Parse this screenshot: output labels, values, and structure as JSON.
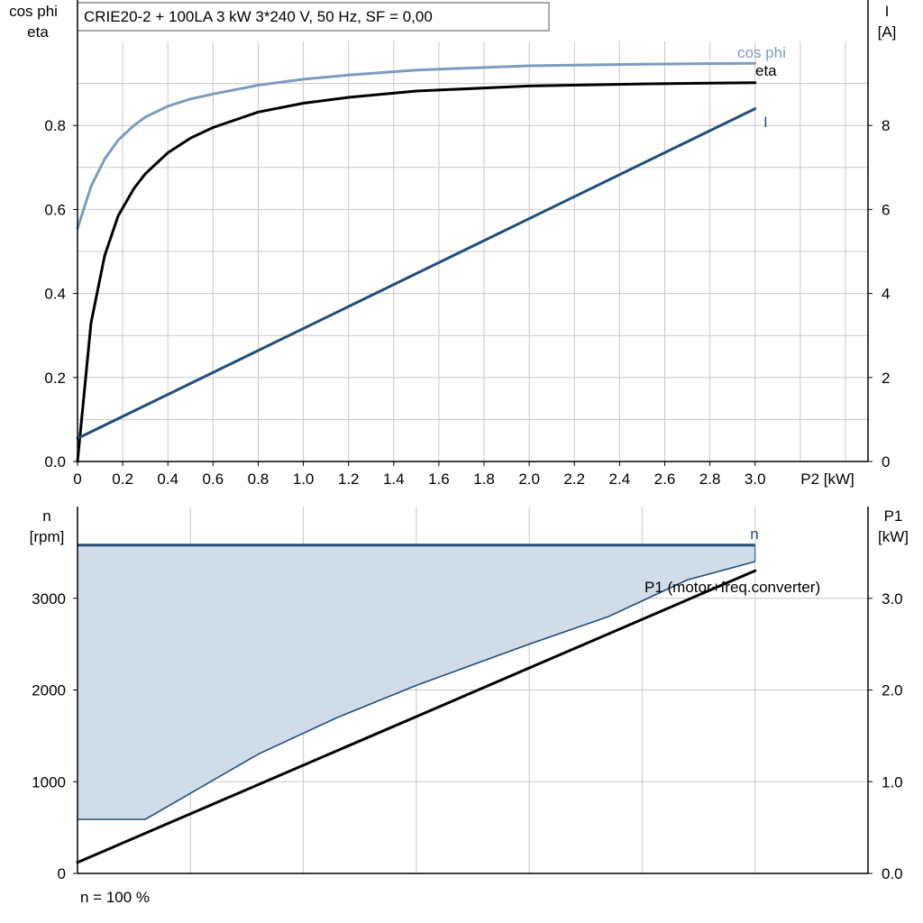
{
  "chart_data": [
    {
      "type": "line",
      "title": "CRIE20-2 + 100LA   3 kW   3*240 V, 50 Hz, SF = 0,00",
      "xlabel": "P2 [kW]",
      "ylabel_left_1": "cos phi",
      "ylabel_left_2": "eta",
      "ylabel_right_1": "I",
      "ylabel_right_2": "[A]",
      "xlim": [
        0,
        3.5
      ],
      "ylim_left": [
        0,
        1.0
      ],
      "ylim_right": [
        0,
        10
      ],
      "grid": true,
      "x_ticks": [
        "0",
        "0.2",
        "0.4",
        "0.6",
        "0.8",
        "1.0",
        "1.2",
        "1.4",
        "1.6",
        "1.8",
        "2.0",
        "2.2",
        "2.4",
        "2.6",
        "2.8",
        "3.0"
      ],
      "y_ticks_left": [
        "0.0",
        "0.2",
        "0.4",
        "0.6",
        "0.8"
      ],
      "y_ticks_right": [
        "0",
        "2",
        "4",
        "6",
        "8"
      ],
      "series": [
        {
          "name": "cos phi",
          "axis": "left",
          "color": "#7a9cbf",
          "x": [
            0,
            0.06,
            0.12,
            0.18,
            0.25,
            0.3,
            0.4,
            0.5,
            0.6,
            0.8,
            1.0,
            1.2,
            1.5,
            2.0,
            2.5,
            3.0
          ],
          "y": [
            0.555,
            0.655,
            0.72,
            0.765,
            0.8,
            0.82,
            0.846,
            0.863,
            0.875,
            0.896,
            0.91,
            0.92,
            0.932,
            0.942,
            0.946,
            0.948
          ]
        },
        {
          "name": "eta",
          "axis": "left",
          "color": "#000000",
          "x": [
            0,
            0.06,
            0.12,
            0.18,
            0.25,
            0.3,
            0.4,
            0.5,
            0.6,
            0.8,
            1.0,
            1.2,
            1.5,
            2.0,
            2.5,
            3.0
          ],
          "y": [
            0.0,
            0.33,
            0.49,
            0.585,
            0.65,
            0.685,
            0.735,
            0.77,
            0.795,
            0.832,
            0.853,
            0.867,
            0.882,
            0.894,
            0.899,
            0.902
          ]
        },
        {
          "name": "I",
          "axis": "right",
          "color": "#1f4e79",
          "x": [
            0,
            3.0
          ],
          "y": [
            0.55,
            8.4
          ]
        }
      ]
    },
    {
      "type": "area",
      "xlim": [
        0,
        3.5
      ],
      "ylabel_left_1": "n",
      "ylabel_left_2": "[rpm]",
      "ylabel_right_1": "P1",
      "ylabel_right_2": "[kW]",
      "ylim_left": [
        0,
        4000
      ],
      "ylim_right": [
        0.0,
        4.0
      ],
      "grid": true,
      "y_ticks_left": [
        "0",
        "1000",
        "2000",
        "3000"
      ],
      "y_ticks_right": [
        "0.0",
        "1.0",
        "2.0",
        "3.0"
      ],
      "footer": "n = 100 %",
      "series": [
        {
          "name": "n",
          "axis": "left",
          "color": "#1f4e79",
          "x": [
            0,
            3.0
          ],
          "y": [
            3580,
            3580
          ]
        },
        {
          "name": "P1 (motor+freq.converter)",
          "axis": "right",
          "color": "#000000",
          "x": [
            0,
            3.0
          ],
          "y": [
            0.12,
            3.3
          ]
        },
        {
          "name": "",
          "axis": "left",
          "role": "area-lower-boundary",
          "color": "#1f4e79",
          "fill": "#d0dce8",
          "x": [
            0,
            0.3,
            0.8,
            1.15,
            1.5,
            2.0,
            2.35,
            2.7,
            3.0
          ],
          "y": [
            590,
            590,
            1300,
            1700,
            2050,
            2500,
            2800,
            3200,
            3400
          ]
        }
      ]
    }
  ]
}
